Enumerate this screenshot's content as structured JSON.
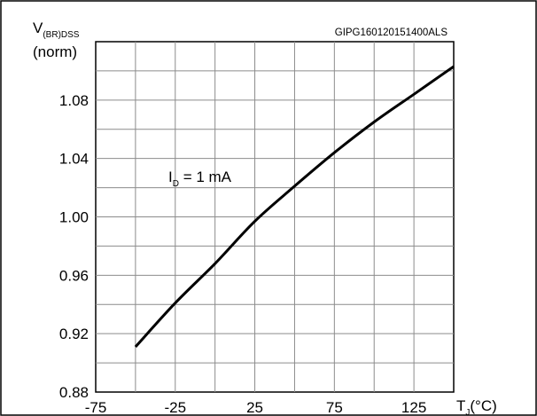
{
  "chart_data": {
    "type": "line",
    "id_code": "GIPG160120151400ALS",
    "ylabel": {
      "main": "V",
      "sub": "(BR)DSS",
      "line2": "(norm)"
    },
    "xlabel": {
      "main": "T",
      "sub": "J",
      "unit": "(°C)"
    },
    "annotation": {
      "main": "I",
      "sub": "D",
      "rest": " = 1 mA"
    },
    "xlim": [
      -75,
      150
    ],
    "ylim": [
      0.88,
      1.12
    ],
    "x_ticks": [
      -75,
      -25,
      25,
      75,
      125
    ],
    "x_tick_labels": [
      "-75",
      "-25",
      "25",
      "75",
      "125"
    ],
    "y_ticks": [
      0.88,
      0.92,
      0.96,
      1.0,
      1.04,
      1.08
    ],
    "y_tick_labels": [
      "0.88",
      "0.92",
      "0.96",
      "1.00",
      "1.04",
      "1.08"
    ],
    "grid": true,
    "series": [
      {
        "x": [
          -50,
          -25,
          0,
          25,
          50,
          75,
          100,
          125,
          150
        ],
        "y": [
          0.911,
          0.941,
          0.968,
          0.997,
          1.021,
          1.044,
          1.065,
          1.084,
          1.103
        ],
        "color": "#000000"
      }
    ]
  }
}
